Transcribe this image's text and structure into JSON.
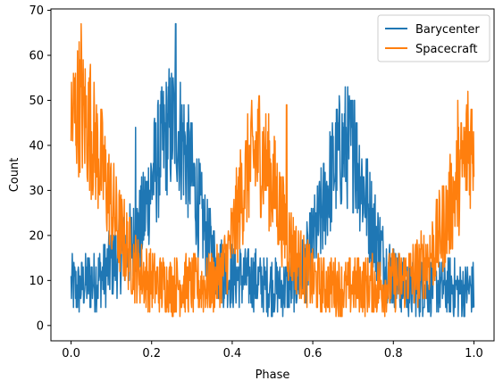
{
  "chart_data": {
    "type": "line",
    "xlabel": "Phase",
    "ylabel": "Count",
    "xlim": [
      -0.05,
      1.05
    ],
    "ylim": [
      -3.4,
      70.3
    ],
    "xticks": [
      0.0,
      0.2,
      0.4,
      0.6,
      0.8,
      1.0
    ],
    "xtick_labels": [
      "0.0",
      "0.2",
      "0.4",
      "0.6",
      "0.8",
      "1.0"
    ],
    "yticks": [
      0,
      10,
      20,
      30,
      40,
      50,
      60,
      70
    ],
    "ytick_labels": [
      "0",
      "10",
      "20",
      "30",
      "40",
      "50",
      "60",
      "70"
    ],
    "grid": false,
    "legend_position": "top-right",
    "series": [
      {
        "name": "Barycenter",
        "color": "#1f77b4",
        "x": [
          0.0,
          0.02,
          0.04,
          0.06,
          0.08,
          0.1,
          0.12,
          0.14,
          0.16,
          0.18,
          0.2,
          0.22,
          0.24,
          0.26,
          0.28,
          0.3,
          0.32,
          0.34,
          0.36,
          0.38,
          0.4,
          0.42,
          0.44,
          0.46,
          0.48,
          0.5,
          0.52,
          0.54,
          0.56,
          0.58,
          0.6,
          0.62,
          0.64,
          0.66,
          0.68,
          0.7,
          0.72,
          0.74,
          0.76,
          0.78,
          0.8,
          0.82,
          0.84,
          0.86,
          0.88,
          0.9,
          0.92,
          0.94,
          0.96,
          0.98,
          1.0
        ],
        "y": [
          9,
          8,
          10,
          10,
          11,
          14,
          15,
          17,
          19,
          24,
          32,
          38,
          43,
          45,
          40,
          33,
          25,
          18,
          14,
          11,
          11,
          11,
          10,
          10,
          9,
          9,
          8,
          9,
          10,
          13,
          18,
          24,
          31,
          37,
          40,
          39,
          33,
          25,
          19,
          14,
          11,
          9,
          8,
          8,
          9,
          9,
          8,
          9,
          8,
          8,
          8
        ],
        "noise": 5.5,
        "peaks": [
          {
            "x": 0.26,
            "y": 67
          },
          {
            "x": 0.703,
            "y": 50
          },
          {
            "x": 0.16,
            "y": 44
          }
        ]
      },
      {
        "name": "Spacecraft",
        "color": "#ff7f0e",
        "x": [
          0.0,
          0.02,
          0.04,
          0.06,
          0.08,
          0.1,
          0.12,
          0.14,
          0.16,
          0.18,
          0.2,
          0.22,
          0.24,
          0.26,
          0.28,
          0.3,
          0.32,
          0.34,
          0.36,
          0.38,
          0.4,
          0.42,
          0.44,
          0.46,
          0.48,
          0.5,
          0.52,
          0.54,
          0.56,
          0.58,
          0.6,
          0.62,
          0.64,
          0.66,
          0.68,
          0.7,
          0.72,
          0.74,
          0.76,
          0.78,
          0.8,
          0.82,
          0.84,
          0.86,
          0.88,
          0.9,
          0.92,
          0.94,
          0.96,
          0.98,
          1.0
        ],
        "y": [
          45,
          49,
          45,
          40,
          34,
          27,
          21,
          17,
          13,
          11,
          10,
          9,
          9,
          9,
          9,
          9,
          9,
          9,
          10,
          13,
          19,
          28,
          35,
          38,
          37,
          32,
          25,
          19,
          15,
          12,
          10,
          9,
          9,
          9,
          8,
          9,
          9,
          9,
          9,
          9,
          10,
          10,
          11,
          12,
          14,
          17,
          21,
          26,
          32,
          38,
          42
        ],
        "noise": 5.5,
        "peaks": [
          {
            "x": 0.025,
            "y": 67
          },
          {
            "x": 0.048,
            "y": 58
          },
          {
            "x": 0.467,
            "y": 51
          },
          {
            "x": 0.535,
            "y": 49
          },
          {
            "x": 0.96,
            "y": 50
          },
          {
            "x": 0.985,
            "y": 52
          }
        ]
      }
    ]
  }
}
